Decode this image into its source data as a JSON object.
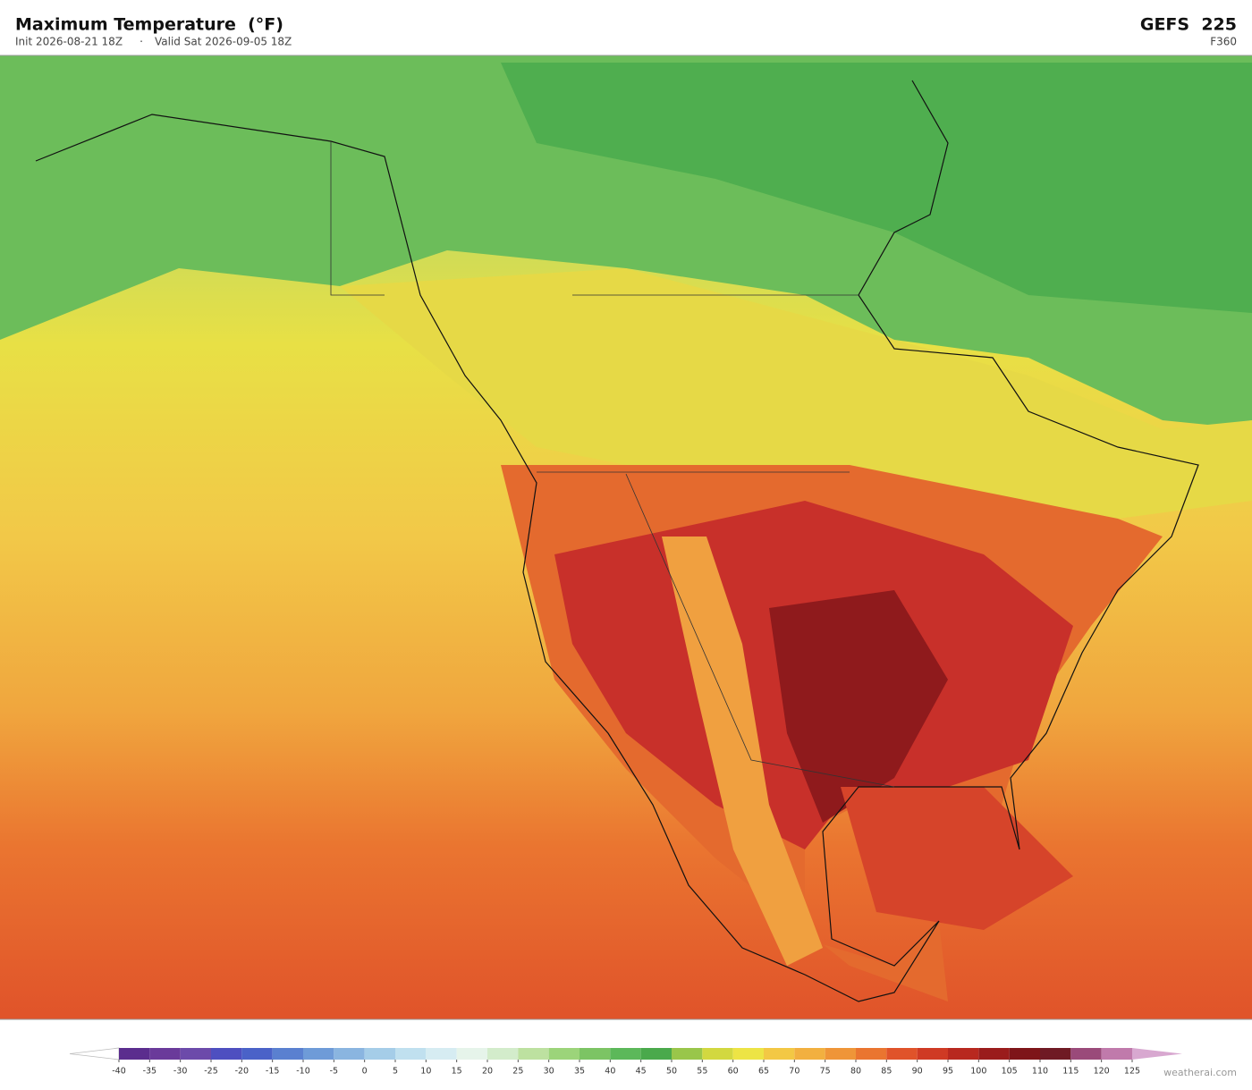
{
  "header": {
    "title": "Maximum Temperature  (°F)",
    "init": "Init 2026-08-21 18Z",
    "separator": "·",
    "valid": "Valid Sat 2026-09-05 18Z",
    "model": "GEFS  225",
    "forecast_hour": "F360"
  },
  "colorbar": {
    "ticks": [
      -40,
      -35,
      -30,
      -25,
      -20,
      -15,
      -10,
      -5,
      0,
      5,
      10,
      15,
      20,
      25,
      30,
      35,
      40,
      45,
      50,
      55,
      60,
      65,
      70,
      75,
      80,
      85,
      90,
      95,
      100,
      105,
      110,
      115,
      120,
      125
    ],
    "colors": [
      "#5b2d8e",
      "#6a3a9a",
      "#6c4aaa",
      "#4e4fc0",
      "#4a62c8",
      "#5a80d0",
      "#6e9bd8",
      "#8ab5e0",
      "#a5cde8",
      "#c0e0ef",
      "#d6ecf2",
      "#e6f4ea",
      "#d3eccb",
      "#bde1a0",
      "#9cd47a",
      "#7cc464",
      "#5cb85a",
      "#4aa94c",
      "#99c64a",
      "#d2d840",
      "#ede445",
      "#f3c844",
      "#f2b040",
      "#ef9538",
      "#ea7530",
      "#e0532a",
      "#cf3a24",
      "#b8281f",
      "#9a1c1c",
      "#7e1519",
      "#6f1a24",
      "#9a4a7a",
      "#c07aab"
    ],
    "under_color": "#ffffff",
    "over_color": "#d8a8d0"
  },
  "watermark": "weatherai.com"
}
